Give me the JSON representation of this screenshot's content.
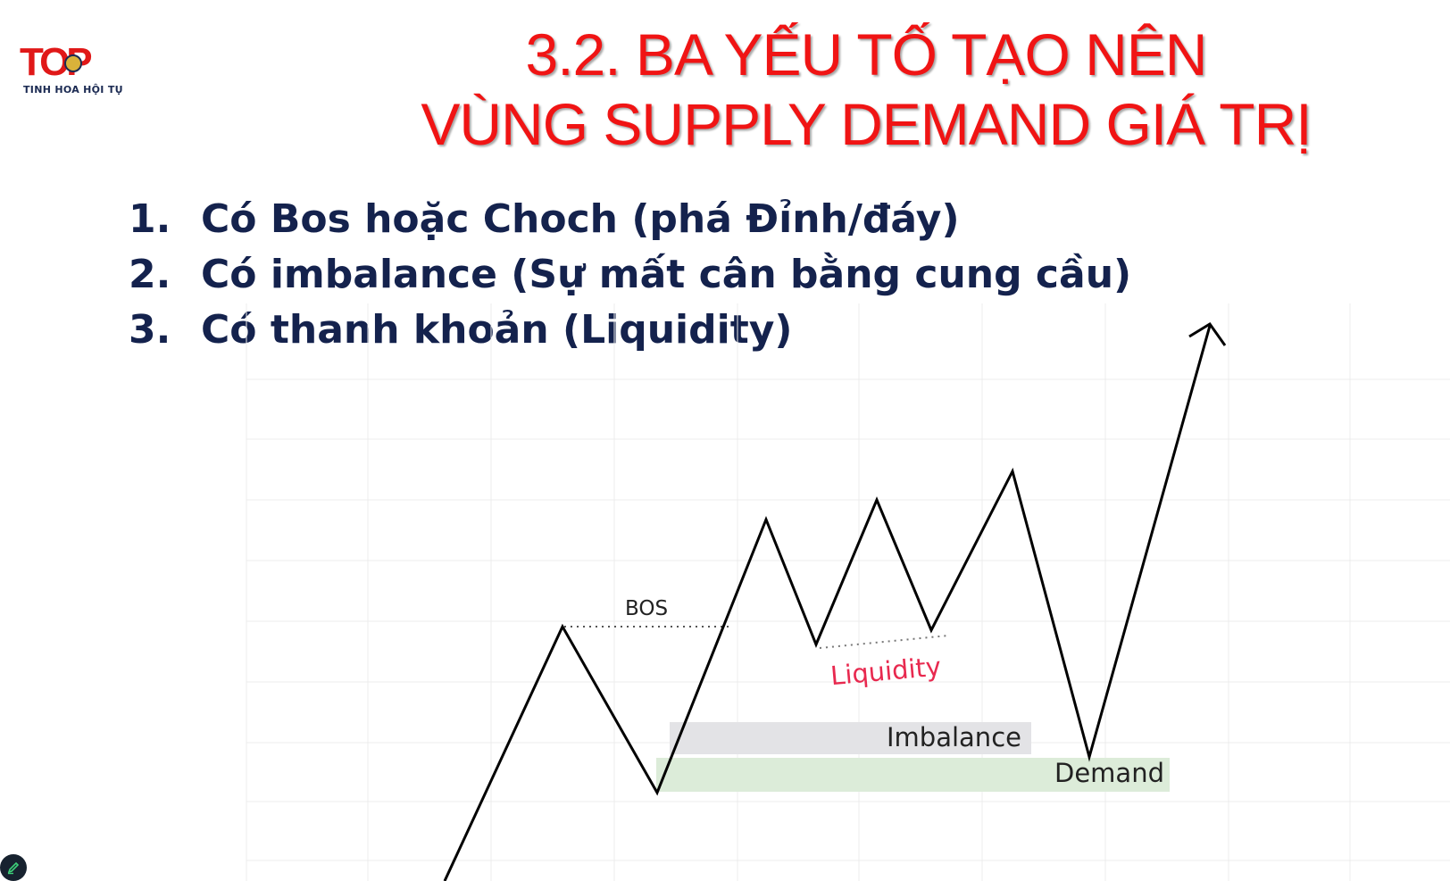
{
  "logo": {
    "mark_text": "TOP",
    "subtitle": "TINH HOA HỘI TỤ"
  },
  "title": {
    "line1": "3.2. BA YẾU TỐ TẠO NÊN",
    "line2": "VÙNG SUPPLY DEMAND GIÁ TRỊ"
  },
  "points": [
    {
      "number": "1.",
      "text": "Có Bos hoặc Choch (phá Đỉnh/đáy)"
    },
    {
      "number": "2.",
      "text": "Có imbalance (Sự mất cân bằng cung cầu)"
    },
    {
      "number": "3.",
      "text": "Có thanh khoản (Liquidity)"
    }
  ],
  "diagram": {
    "labels": {
      "bos": "BOS",
      "liquidity": "Liquidity",
      "imbalance": "Imbalance",
      "demand": "Demand"
    },
    "colors": {
      "price_line": "#000000",
      "liquidity_label": "#e8294f",
      "imbalance_zone": "#e3e3e6",
      "demand_zone": "#dcecd9",
      "grid": "#ececec",
      "title": "#f01414",
      "points_text": "#14224d"
    }
  },
  "controls": {
    "edit_icon": "pen-icon"
  }
}
